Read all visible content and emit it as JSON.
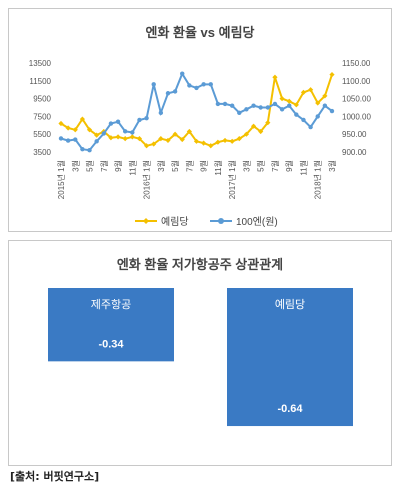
{
  "chart_data": [
    {
      "type": "line",
      "title": "엔화 환율 vs 예림당",
      "x": [
        "2015년 1월",
        "2015년 2월",
        "2015년 3월",
        "2015년 4월",
        "2015년 5월",
        "2015년 6월",
        "2015년 7월",
        "2015년 8월",
        "2015년 9월",
        "2015년 10월",
        "2015년 11월",
        "2015년 12월",
        "2016년 1월",
        "2016년 2월",
        "2016년 3월",
        "2016년 4월",
        "2016년 5월",
        "2016년 6월",
        "2016년 7월",
        "2016년 8월",
        "2016년 9월",
        "2016년 10월",
        "2016년 11월",
        "2016년 12월",
        "2017년 1월",
        "2017년 2월",
        "2017년 3월",
        "2017년 4월",
        "2017년 5월",
        "2017년 6월",
        "2017년 7월",
        "2017년 8월",
        "2017년 9월",
        "2017년 10월",
        "2017년 11월",
        "2017년 12월",
        "2018년 1월",
        "2018년 2월",
        "2018년 3월"
      ],
      "xtick_labels": [
        "2015년 1월",
        "3월",
        "5월",
        "7월",
        "9월",
        "11월",
        "2016년 1월",
        "3월",
        "5월",
        "7월",
        "9월",
        "11월",
        "2017년 1월",
        "3월",
        "5월",
        "7월",
        "9월",
        "11월",
        "2018년 1월",
        "3월"
      ],
      "series": [
        {
          "name": "예림당",
          "axis": "left",
          "color": "#f4c000",
          "marker": "diamond",
          "values": [
            6700,
            6200,
            6000,
            7200,
            6000,
            5400,
            5800,
            5100,
            5200,
            5000,
            5200,
            5000,
            4200,
            4400,
            5000,
            4800,
            5500,
            4900,
            5800,
            4700,
            4500,
            4200,
            4600,
            4800,
            4700,
            5000,
            5500,
            6400,
            5800,
            6800,
            11900,
            9500,
            9200,
            8800,
            10200,
            10500,
            9000,
            9800,
            12200
          ]
        },
        {
          "name": "100엔(원)",
          "axis": "right",
          "color": "#5b9bd5",
          "marker": "circle",
          "values": [
            938,
            932,
            935,
            908,
            905,
            930,
            952,
            980,
            985,
            958,
            955,
            990,
            995,
            1090,
            1010,
            1065,
            1070,
            1120,
            1087,
            1080,
            1090,
            1090,
            1035,
            1035,
            1030,
            1010,
            1020,
            1030,
            1025,
            1025,
            1035,
            1020,
            1030,
            1005,
            990,
            970,
            1000,
            1030,
            1015
          ]
        }
      ],
      "y_left": {
        "ticks": [
          3500,
          5500,
          7500,
          9500,
          11500,
          13500
        ],
        "tick_labels": [
          "3500",
          "5500",
          "7500",
          "9500",
          "11500",
          "13500"
        ],
        "range": [
          3500,
          13500
        ]
      },
      "y_right": {
        "ticks": [
          900,
          950,
          1000,
          1050,
          1100,
          1150
        ],
        "tick_labels": [
          "900.00",
          "950.00",
          "1000.00",
          "1050.00",
          "1100.00",
          "1150.00"
        ],
        "range": [
          900,
          1150
        ]
      },
      "legend_position": "bottom",
      "grid": false
    },
    {
      "type": "bar",
      "title": "엔화 환율 저가항공주 상관관계",
      "categories": [
        "제주항공",
        "예림당"
      ],
      "values": [
        -0.34,
        -0.64
      ],
      "value_labels": [
        "-0.34",
        "-0.64"
      ],
      "color": "#3a7ac4",
      "ylim": [
        -0.7,
        0
      ]
    }
  ],
  "source": "[출처: 버핏연구소]"
}
